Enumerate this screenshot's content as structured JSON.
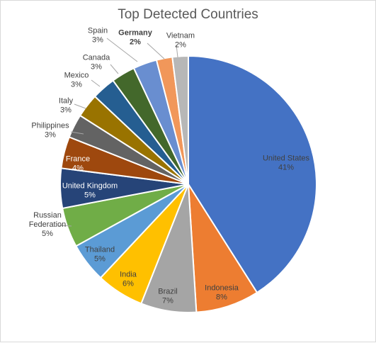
{
  "chart_data": {
    "type": "pie",
    "title": "Top Detected Countries",
    "start_angle_deg": 0,
    "direction": "clockwise",
    "slices": [
      {
        "label": [
          "United States"
        ],
        "pct": "41%",
        "value": 41,
        "color": "#4472c4"
      },
      {
        "label": [
          "Indonesia"
        ],
        "pct": "8%",
        "value": 8,
        "color": "#ed7d31"
      },
      {
        "label": [
          "Brazil"
        ],
        "pct": "7%",
        "value": 7,
        "color": "#a5a5a5"
      },
      {
        "label": [
          "India"
        ],
        "pct": "6%",
        "value": 6,
        "color": "#ffc000"
      },
      {
        "label": [
          "Thailand"
        ],
        "pct": "5%",
        "value": 5,
        "color": "#5b9bd5"
      },
      {
        "label": [
          "Russian",
          "Federation"
        ],
        "pct": "5%",
        "value": 5,
        "color": "#70ad47"
      },
      {
        "label": [
          "United Kingdom"
        ],
        "pct": "5%",
        "value": 5,
        "color": "#264478"
      },
      {
        "label": [
          "France"
        ],
        "pct": "4%",
        "value": 4,
        "color": "#9e480e"
      },
      {
        "label": [
          "Philippines"
        ],
        "pct": "3%",
        "value": 3,
        "color": "#636363"
      },
      {
        "label": [
          "Italy"
        ],
        "pct": "3%",
        "value": 3,
        "color": "#997300"
      },
      {
        "label": [
          "Mexico"
        ],
        "pct": "3%",
        "value": 3,
        "color": "#255e91"
      },
      {
        "label": [
          "Canada"
        ],
        "pct": "3%",
        "value": 3,
        "color": "#43682b"
      },
      {
        "label": [
          "Spain"
        ],
        "pct": "3%",
        "value": 3,
        "color": "#698ed0"
      },
      {
        "label": [
          "Germany"
        ],
        "pct": "2%",
        "value": 2,
        "color": "#f1975a",
        "bold": true
      },
      {
        "label": [
          "Vietnam"
        ],
        "pct": "2%",
        "value": 2,
        "color": "#b7b7b7"
      }
    ]
  }
}
